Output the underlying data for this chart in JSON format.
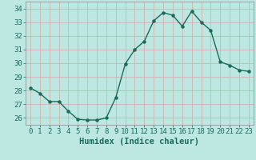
{
  "x": [
    0,
    1,
    2,
    3,
    4,
    5,
    6,
    7,
    8,
    9,
    10,
    11,
    12,
    13,
    14,
    15,
    16,
    17,
    18,
    19,
    20,
    21,
    22,
    23
  ],
  "y": [
    28.2,
    27.8,
    27.2,
    27.2,
    26.5,
    25.9,
    25.85,
    25.85,
    26.0,
    27.5,
    29.95,
    31.0,
    31.6,
    33.1,
    33.7,
    33.5,
    32.7,
    33.8,
    33.0,
    32.4,
    30.1,
    29.85,
    29.5,
    29.4
  ],
  "line_color": "#1a6b5a",
  "marker": "o",
  "marker_size": 2.2,
  "bg_color": "#bde8e2",
  "grid_color": "#d4a8a8",
  "xlabel": "Humidex (Indice chaleur)",
  "ylim": [
    25.5,
    34.5
  ],
  "xlim": [
    -0.5,
    23.5
  ],
  "yticks": [
    26,
    27,
    28,
    29,
    30,
    31,
    32,
    33,
    34
  ],
  "xticks": [
    0,
    1,
    2,
    3,
    4,
    5,
    6,
    7,
    8,
    9,
    10,
    11,
    12,
    13,
    14,
    15,
    16,
    17,
    18,
    19,
    20,
    21,
    22,
    23
  ],
  "tick_color": "#1a6b5a",
  "label_color": "#1a6b5a",
  "spine_color": "#888888",
  "font_size_label": 7.5,
  "font_size_tick": 6.5,
  "line_width": 1.0
}
